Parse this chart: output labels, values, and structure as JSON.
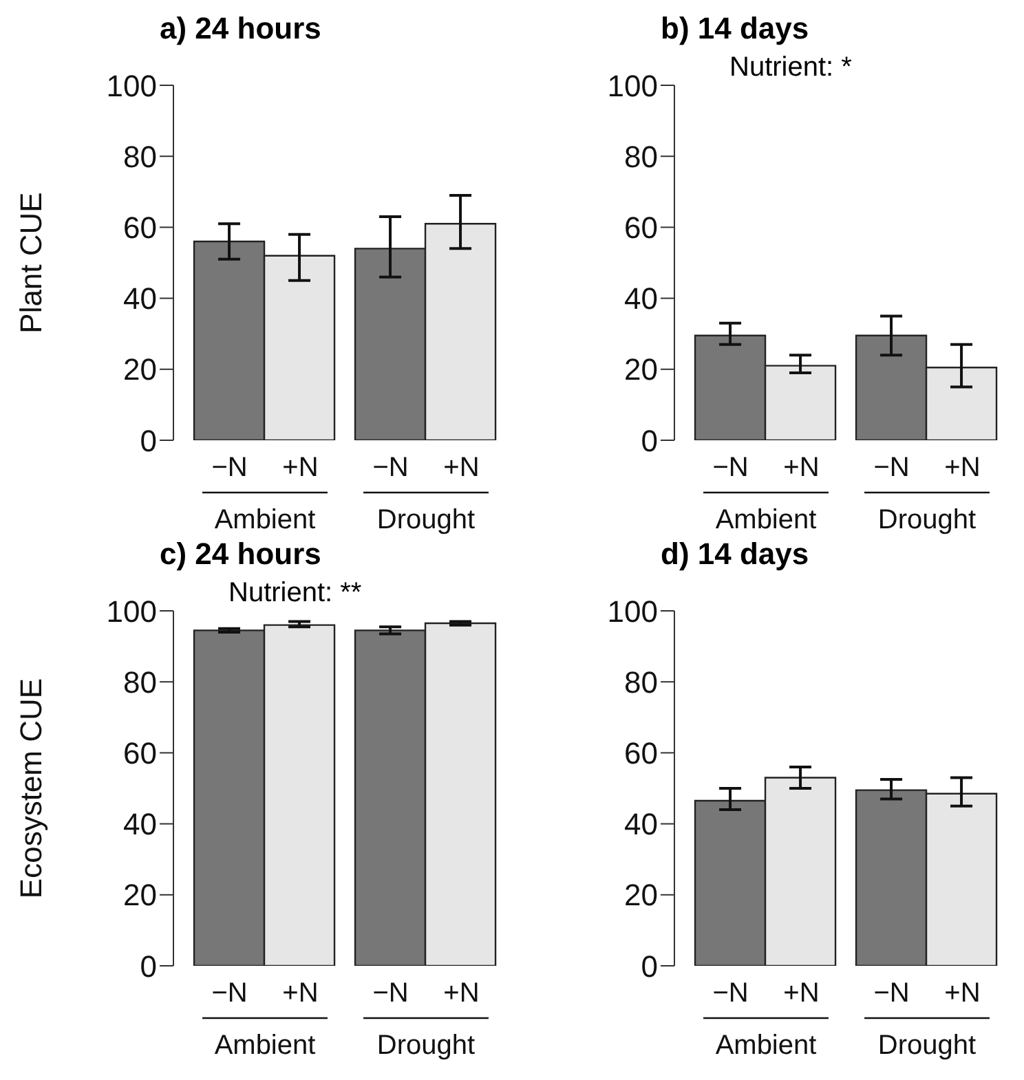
{
  "chart_data": [
    {
      "type": "bar",
      "title": "a) 24 hours",
      "ylabel": "Plant CUE",
      "categories": [
        "Ambient",
        "Drought"
      ],
      "series": [
        {
          "name": "−N",
          "color": "#777777",
          "values": [
            56,
            54
          ],
          "errors": [
            [
              51,
              61
            ],
            [
              46,
              63
            ]
          ]
        },
        {
          "name": "+N",
          "color": "#e6e6e6",
          "values": [
            52,
            61
          ],
          "errors": [
            [
              45,
              58
            ],
            [
              54,
              69
            ]
          ]
        }
      ],
      "ylim": [
        0,
        100
      ],
      "yticks": [
        0,
        20,
        40,
        60,
        80,
        100
      ],
      "legend": false,
      "grid": false
    },
    {
      "type": "bar",
      "title": "b) 14 days",
      "annotations": [
        "Nutrient: *"
      ],
      "categories": [
        "Ambient",
        "Drought"
      ],
      "series": [
        {
          "name": "−N",
          "color": "#777777",
          "values": [
            29.5,
            29.5
          ],
          "errors": [
            [
              27,
              33
            ],
            [
              24,
              35
            ]
          ]
        },
        {
          "name": "+N",
          "color": "#e6e6e6",
          "values": [
            21,
            20.5
          ],
          "errors": [
            [
              19,
              24
            ],
            [
              15,
              27
            ]
          ]
        }
      ],
      "ylim": [
        0,
        100
      ],
      "yticks": [
        0,
        20,
        40,
        60,
        80,
        100
      ],
      "legend": false,
      "grid": false
    },
    {
      "type": "bar",
      "title": "c) 24 hours",
      "ylabel": "Ecosystem CUE",
      "annotations": [
        "Nutrient: **"
      ],
      "categories": [
        "Ambient",
        "Drought"
      ],
      "series": [
        {
          "name": "−N",
          "color": "#777777",
          "values": [
            94.5,
            94.5
          ],
          "errors": [
            [
              94,
              95
            ],
            [
              93.5,
              95.5
            ]
          ]
        },
        {
          "name": "+N",
          "color": "#e6e6e6",
          "values": [
            96,
            96.5
          ],
          "errors": [
            [
              95.5,
              97
            ],
            [
              96,
              97
            ]
          ]
        }
      ],
      "ylim": [
        0,
        100
      ],
      "yticks": [
        0,
        20,
        40,
        60,
        80,
        100
      ],
      "legend": false,
      "grid": false
    },
    {
      "type": "bar",
      "title": "d) 14 days",
      "categories": [
        "Ambient",
        "Drought"
      ],
      "series": [
        {
          "name": "−N",
          "color": "#777777",
          "values": [
            46.5,
            49.5
          ],
          "errors": [
            [
              44,
              50
            ],
            [
              47,
              52.5
            ]
          ]
        },
        {
          "name": "+N",
          "color": "#e6e6e6",
          "values": [
            53,
            48.5
          ],
          "errors": [
            [
              50,
              56
            ],
            [
              45,
              53
            ]
          ]
        }
      ],
      "ylim": [
        0,
        100
      ],
      "yticks": [
        0,
        20,
        40,
        60,
        80,
        100
      ],
      "legend": false,
      "grid": false
    }
  ]
}
